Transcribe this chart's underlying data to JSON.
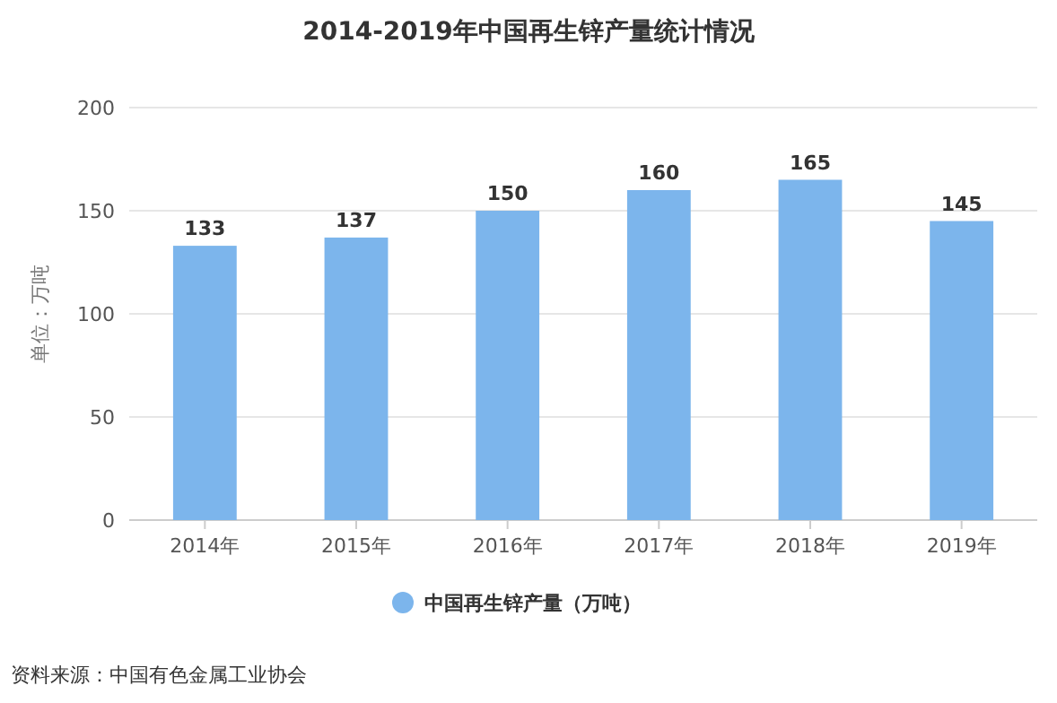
{
  "chart_data": {
    "type": "bar",
    "title": "2014-2019年中国再生锌产量统计情况",
    "categories": [
      "2014年",
      "2015年",
      "2016年",
      "2017年",
      "2018年",
      "2019年"
    ],
    "series": [
      {
        "name": "中国再生锌产量（万吨）",
        "color": "#7cb5ec",
        "values": [
          133,
          137,
          150,
          160,
          165,
          145
        ]
      }
    ],
    "ylabel": "单位：万吨",
    "ylim": [
      0,
      200
    ],
    "yticks": [
      0,
      50,
      100,
      150,
      200
    ],
    "grid": "y",
    "data_labels": true,
    "legend": "bottom",
    "annotations": [
      "资料来源：中国有色金属工业协会"
    ]
  }
}
